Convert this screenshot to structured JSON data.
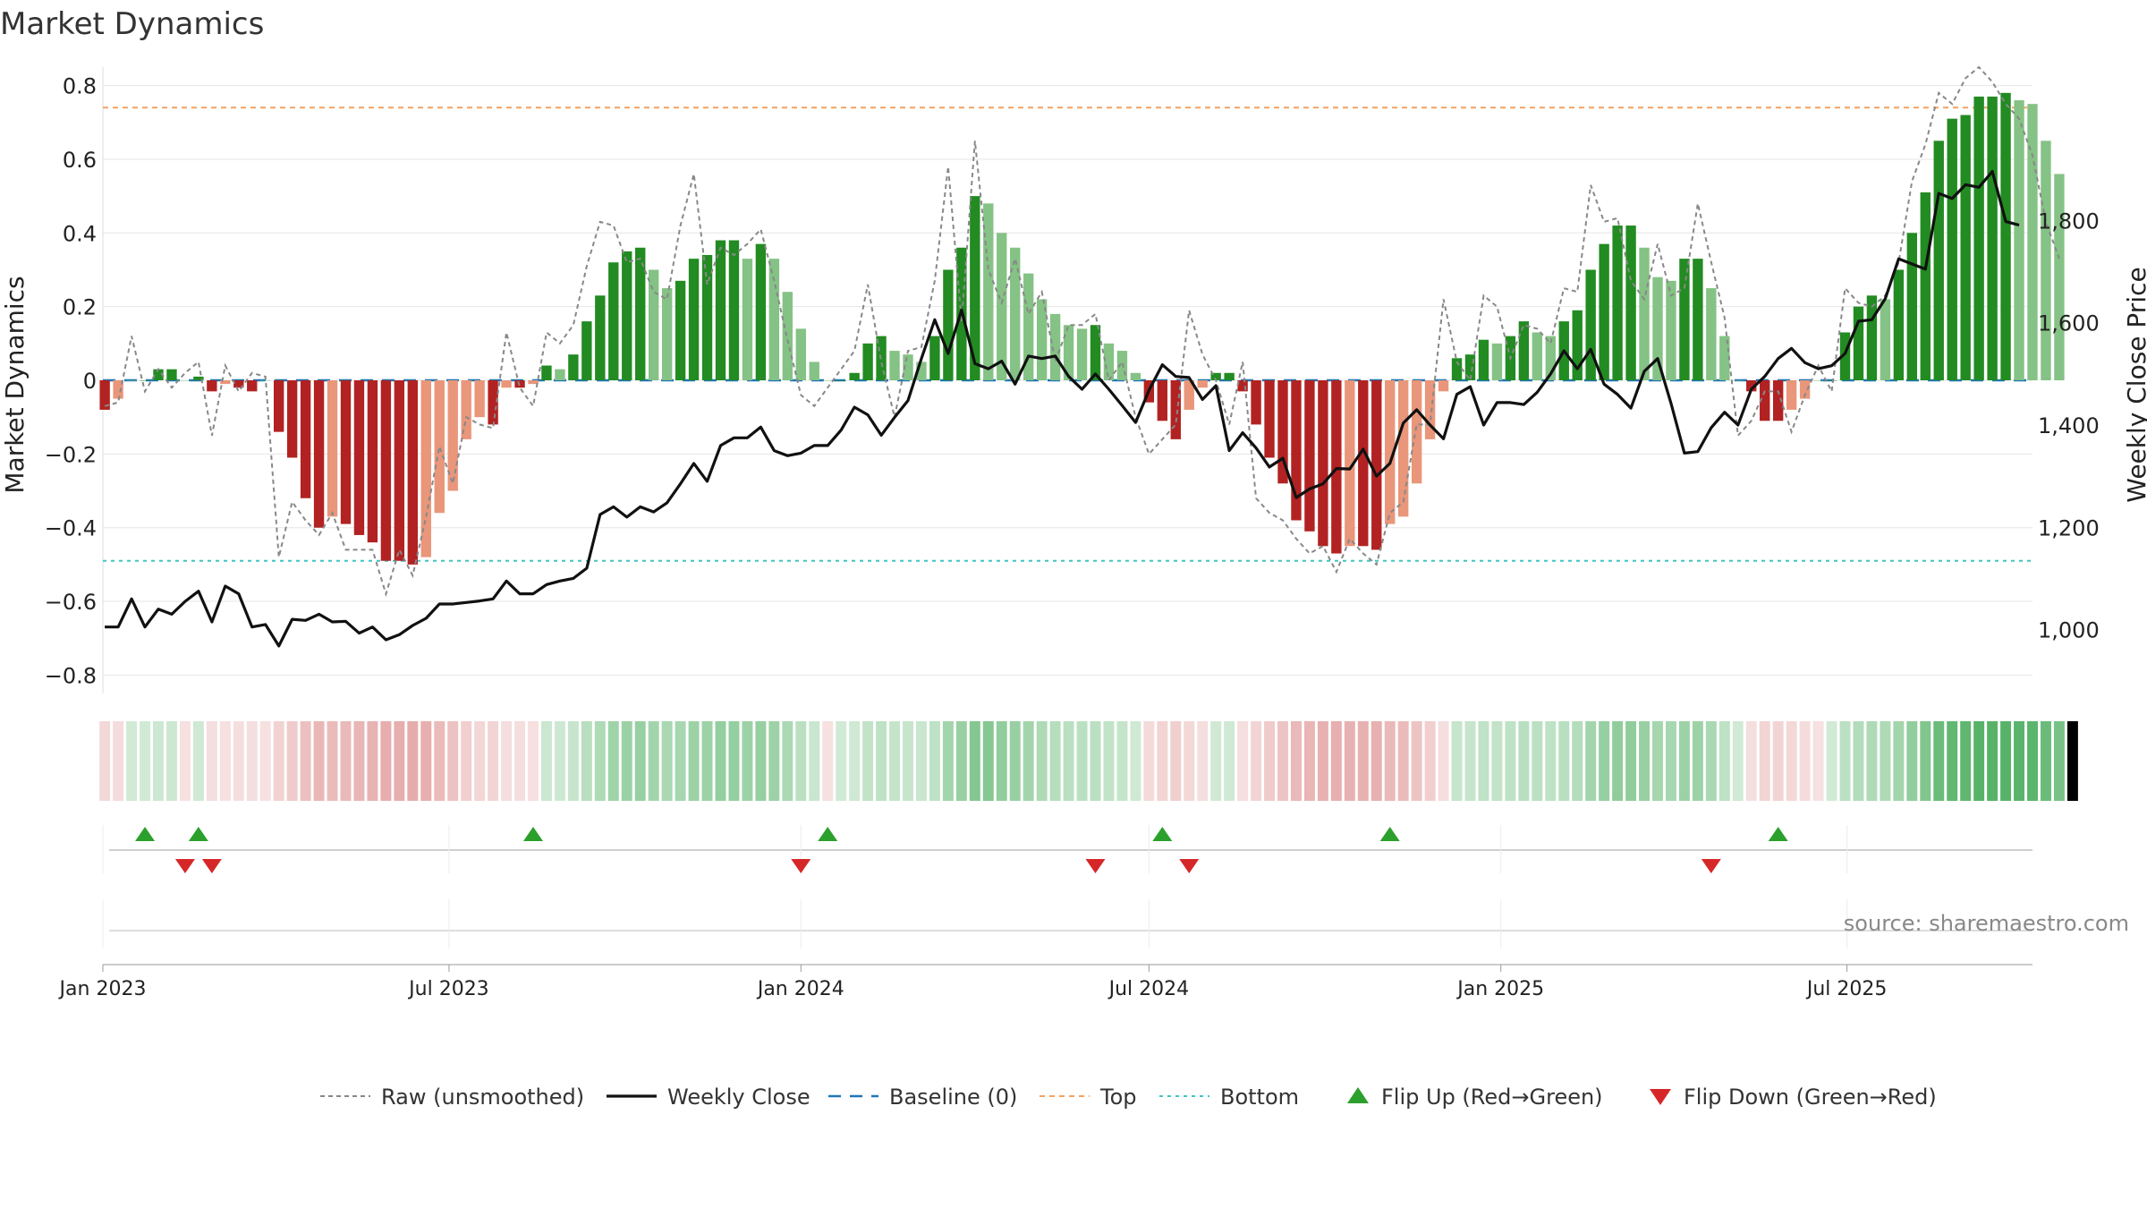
{
  "chart_data": {
    "type": "bar",
    "title": "Market Dynamics",
    "ylabel": "Market Dynamics",
    "y2label": "Weekly Close Price",
    "source": "source: sharemaestro.com",
    "ylim": [
      -0.85,
      0.85
    ],
    "yticks": [
      {
        "v": 0.8,
        "label": "0.8"
      },
      {
        "v": 0.6,
        "label": "0.6"
      },
      {
        "v": 0.4,
        "label": "0.4"
      },
      {
        "v": 0.2,
        "label": "0.2"
      },
      {
        "v": 0,
        "label": "0"
      },
      {
        "v": -0.2,
        "label": "−0.2"
      },
      {
        "v": -0.4,
        "label": "−0.4"
      },
      {
        "v": -0.6,
        "label": "−0.6"
      },
      {
        "v": -0.8,
        "label": "−0.8"
      }
    ],
    "y2lim": [
      875,
      2100
    ],
    "y2ticks": [
      {
        "v": 1000,
        "label": "1,000"
      },
      {
        "v": 1200,
        "label": "1,200"
      },
      {
        "v": 1400,
        "label": "1,400"
      },
      {
        "v": 1600,
        "label": "1,600"
      },
      {
        "v": 1800,
        "label": "1,800"
      }
    ],
    "x_start": "2023-01-02",
    "x_step_days": 7,
    "xticks": [
      {
        "date": "2023-01-01",
        "label": "Jan 2023"
      },
      {
        "date": "2023-07-01",
        "label": "Jul 2023"
      },
      {
        "date": "2024-01-01",
        "label": "Jan 2024"
      },
      {
        "date": "2024-07-01",
        "label": "Jul 2024"
      },
      {
        "date": "2025-01-01",
        "label": "Jan 2025"
      },
      {
        "date": "2025-07-01",
        "label": "Jul 2025"
      }
    ],
    "top_line": 0.74,
    "bottom_line": -0.49,
    "baseline": 0,
    "bar_values": [
      -0.08,
      -0.05,
      0.0,
      0.0,
      0.03,
      0.03,
      0.0,
      0.01,
      -0.03,
      -0.01,
      -0.02,
      -0.03,
      0.0,
      -0.14,
      -0.21,
      -0.32,
      -0.4,
      -0.37,
      -0.39,
      -0.42,
      -0.44,
      -0.49,
      -0.49,
      -0.5,
      -0.48,
      -0.36,
      -0.3,
      -0.16,
      -0.1,
      -0.12,
      -0.02,
      -0.02,
      -0.01,
      0.04,
      0.03,
      0.07,
      0.16,
      0.23,
      0.32,
      0.35,
      0.36,
      0.3,
      0.25,
      0.27,
      0.33,
      0.34,
      0.38,
      0.38,
      0.33,
      0.37,
      0.33,
      0.24,
      0.14,
      0.05,
      0.0,
      0.0,
      0.02,
      0.1,
      0.12,
      0.08,
      0.07,
      0.05,
      0.12,
      0.3,
      0.36,
      0.5,
      0.48,
      0.4,
      0.36,
      0.29,
      0.22,
      0.18,
      0.15,
      0.14,
      0.15,
      0.1,
      0.08,
      0.02,
      -0.06,
      -0.11,
      -0.16,
      -0.08,
      -0.02,
      0.02,
      0.02,
      -0.03,
      -0.12,
      -0.21,
      -0.28,
      -0.38,
      -0.41,
      -0.45,
      -0.47,
      -0.45,
      -0.45,
      -0.46,
      -0.39,
      -0.37,
      -0.28,
      -0.16,
      -0.03,
      0.06,
      0.07,
      0.11,
      0.1,
      0.12,
      0.16,
      0.13,
      0.12,
      0.16,
      0.19,
      0.3,
      0.37,
      0.42,
      0.42,
      0.36,
      0.28,
      0.27,
      0.33,
      0.33,
      0.25,
      0.12,
      0.0,
      -0.03,
      -0.11,
      -0.11,
      -0.08,
      -0.05,
      0.0,
      0.0,
      0.13,
      0.2,
      0.23,
      0.22,
      0.3,
      0.4,
      0.51,
      0.65,
      0.71,
      0.72,
      0.77,
      0.77,
      0.78,
      0.76,
      0.75,
      0.65,
      0.56
    ],
    "raw_values": [
      -0.07,
      -0.06,
      0.12,
      -0.03,
      0.03,
      -0.02,
      0.02,
      0.05,
      -0.15,
      0.04,
      -0.03,
      0.02,
      0.01,
      -0.48,
      -0.33,
      -0.38,
      -0.42,
      -0.36,
      -0.46,
      -0.46,
      -0.46,
      -0.58,
      -0.46,
      -0.53,
      -0.37,
      -0.18,
      -0.28,
      -0.1,
      -0.12,
      -0.13,
      0.13,
      -0.02,
      -0.07,
      0.13,
      0.1,
      0.15,
      0.31,
      0.43,
      0.42,
      0.32,
      0.33,
      0.24,
      0.22,
      0.42,
      0.56,
      0.26,
      0.36,
      0.34,
      0.37,
      0.41,
      0.27,
      0.11,
      -0.04,
      -0.07,
      -0.02,
      0.03,
      0.08,
      0.26,
      0.05,
      -0.1,
      0.08,
      0.09,
      0.27,
      0.58,
      0.16,
      0.65,
      0.3,
      0.21,
      0.33,
      0.18,
      0.24,
      0.05,
      0.15,
      0.15,
      0.18,
      0.0,
      0.05,
      -0.1,
      -0.2,
      -0.16,
      -0.12,
      0.19,
      0.07,
      0.0,
      -0.12,
      0.05,
      -0.32,
      -0.36,
      -0.38,
      -0.43,
      -0.47,
      -0.45,
      -0.52,
      -0.43,
      -0.47,
      -0.5,
      -0.36,
      -0.33,
      -0.12,
      -0.12,
      0.22,
      0.05,
      0.0,
      0.23,
      0.2,
      0.06,
      0.15,
      0.14,
      0.1,
      0.25,
      0.24,
      0.53,
      0.43,
      0.44,
      0.27,
      0.22,
      0.37,
      0.23,
      0.25,
      0.48,
      0.32,
      0.17,
      -0.15,
      -0.11,
      -0.03,
      -0.03,
      -0.14,
      -0.04,
      0.04,
      -0.03,
      0.25,
      0.21,
      0.2,
      0.23,
      0.32,
      0.54,
      0.64,
      0.78,
      0.75,
      0.82,
      0.85,
      0.81,
      0.75,
      0.71,
      0.61,
      0.43,
      0.33
    ],
    "price_values": [
      1005,
      1005,
      1060,
      1005,
      1040,
      1030,
      1055,
      1075,
      1015,
      1085,
      1070,
      1005,
      1010,
      968,
      1020,
      1018,
      1030,
      1015,
      1016,
      993,
      1005,
      980,
      990,
      1008,
      1022,
      1050,
      1050,
      1053,
      1056,
      1060,
      1095,
      1070,
      1070,
      1088,
      1095,
      1100,
      1120,
      1225,
      1240,
      1220,
      1240,
      1230,
      1248,
      1285,
      1325,
      1290,
      1360,
      1375,
      1375,
      1396,
      1350,
      1340,
      1345,
      1360,
      1360,
      1390,
      1435,
      1420,
      1380,
      1415,
      1448,
      1530,
      1606,
      1540,
      1625,
      1520,
      1510,
      1525,
      1480,
      1535,
      1530,
      1535,
      1495,
      1470,
      1500,
      1470,
      1438,
      1405,
      1468,
      1518,
      1495,
      1493,
      1450,
      1477,
      1350,
      1385,
      1355,
      1318,
      1335,
      1258,
      1275,
      1285,
      1315,
      1314,
      1353,
      1300,
      1325,
      1404,
      1430,
      1400,
      1373,
      1460,
      1475,
      1400,
      1444,
      1444,
      1440,
      1464,
      1500,
      1545,
      1510,
      1548,
      1480,
      1460,
      1433,
      1505,
      1530,
      1442,
      1345,
      1348,
      1395,
      1425,
      1400,
      1470,
      1495,
      1530,
      1550,
      1522,
      1510,
      1516,
      1540,
      1603,
      1606,
      1647,
      1725,
      1715,
      1705,
      1853,
      1843,
      1870,
      1865,
      1896,
      1798,
      1791
    ],
    "regime": [
      0,
      0,
      1,
      1,
      1,
      1,
      0,
      1,
      0,
      0,
      0,
      0,
      0,
      0,
      0,
      0,
      0,
      0,
      0,
      0,
      0,
      0,
      0,
      0,
      0,
      0,
      0,
      0,
      0,
      0,
      0,
      0,
      0,
      1,
      1,
      1,
      1,
      1,
      1,
      1,
      1,
      1,
      1,
      1,
      1,
      1,
      1,
      1,
      1,
      1,
      1,
      1,
      1,
      1,
      0,
      1,
      1,
      1,
      1,
      1,
      1,
      1,
      1,
      1,
      1,
      1,
      1,
      1,
      1,
      1,
      1,
      1,
      1,
      1,
      1,
      1,
      1,
      1,
      0,
      0,
      0,
      0,
      0,
      1,
      1,
      0,
      0,
      0,
      0,
      0,
      0,
      0,
      0,
      0,
      0,
      0,
      0,
      0,
      0,
      0,
      0,
      1,
      1,
      1,
      1,
      1,
      1,
      1,
      1,
      1,
      1,
      1,
      1,
      1,
      1,
      1,
      1,
      1,
      1,
      1,
      1,
      1,
      1,
      0,
      0,
      0,
      0,
      0,
      0,
      1,
      1,
      1,
      1,
      1,
      1,
      1,
      1,
      1,
      1,
      1,
      1,
      1,
      1,
      1,
      1,
      1,
      1,
      1
    ],
    "flip_up_dates": [
      "2023-01-23",
      "2023-02-20",
      "2023-08-14",
      "2024-01-15",
      "2024-07-08",
      "2024-11-04",
      "2025-05-26"
    ],
    "flip_down_dates": [
      "2023-02-13",
      "2023-02-27",
      "2024-01-01",
      "2024-06-03",
      "2024-07-22",
      "2025-04-21"
    ],
    "legend": [
      {
        "key": "raw",
        "label": "Raw (unsmoothed)"
      },
      {
        "key": "close",
        "label": "Weekly Close"
      },
      {
        "key": "baseline",
        "label": "Baseline (0)"
      },
      {
        "key": "top",
        "label": "Top"
      },
      {
        "key": "bottom",
        "label": "Bottom"
      },
      {
        "key": "flipup",
        "label": "Flip Up (Red→Green)"
      },
      {
        "key": "flipdown",
        "label": "Flip Down (Green→Red)"
      }
    ],
    "colors": {
      "green_strong": "#228b22",
      "green_light": "#85c285",
      "red_strong": "#b22222",
      "red_light": "#e9967a",
      "price": "#111111",
      "raw": "#888888",
      "baseline": "#1f77b4",
      "top": "#f4a261",
      "bottom": "#40c4c4",
      "flip_up": "#2ca02c",
      "flip_down": "#d62728"
    }
  }
}
